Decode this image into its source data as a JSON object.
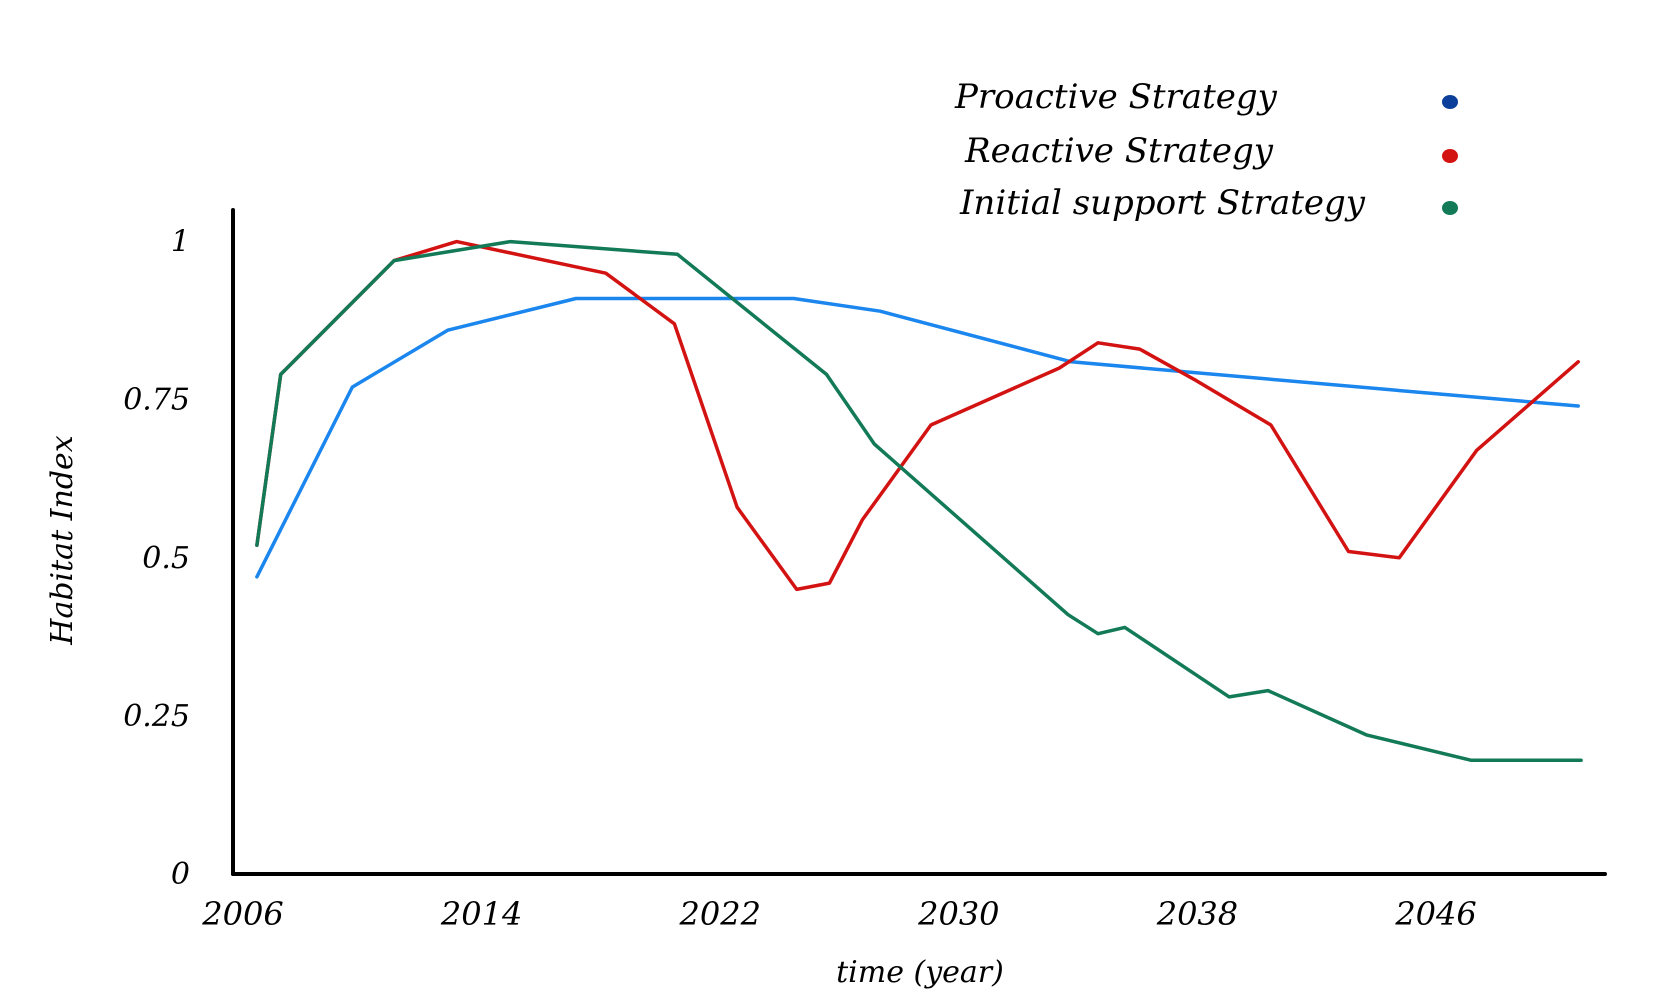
{
  "chart_data": {
    "type": "line",
    "xlabel": "time (year)",
    "ylabel": "Habitat Index",
    "xlim": [
      2006,
      2052
    ],
    "ylim": [
      0,
      1.05
    ],
    "x_ticks": [
      "2006",
      "2014",
      "2022",
      "2030",
      "2038",
      "2046"
    ],
    "x_tick_values": [
      2006,
      2014,
      2022,
      2030,
      2038,
      2046
    ],
    "y_ticks": [
      "0",
      "0.25",
      "0.5",
      "0.75",
      "1"
    ],
    "y_tick_values": [
      0,
      0.25,
      0.5,
      0.75,
      1
    ],
    "grid": false,
    "legend_position": "top-right",
    "series": [
      {
        "name": "Proactive Strategy",
        "color": "#1a86ee",
        "marker_color": "#0b3f9a",
        "points": [
          [
            2006.8,
            0.47
          ],
          [
            2010.0,
            0.77
          ],
          [
            2013.2,
            0.86
          ],
          [
            2017.5,
            0.91
          ],
          [
            2024.8,
            0.91
          ],
          [
            2027.7,
            0.89
          ],
          [
            2034.1,
            0.81
          ],
          [
            2046.2,
            0.76
          ],
          [
            2051.1,
            0.74
          ]
        ]
      },
      {
        "name": "Reactive Strategy",
        "color": "#d31212",
        "marker_color": "#d31212",
        "points": [
          [
            2006.8,
            0.52
          ],
          [
            2007.6,
            0.79
          ],
          [
            2011.4,
            0.97
          ],
          [
            2013.5,
            1.0
          ],
          [
            2018.5,
            0.95
          ],
          [
            2020.8,
            0.87
          ],
          [
            2022.9,
            0.58
          ],
          [
            2024.9,
            0.45
          ],
          [
            2026.0,
            0.46
          ],
          [
            2027.1,
            0.56
          ],
          [
            2029.4,
            0.71
          ],
          [
            2033.7,
            0.8
          ],
          [
            2035.0,
            0.84
          ],
          [
            2036.4,
            0.83
          ],
          [
            2038.3,
            0.78
          ],
          [
            2040.8,
            0.71
          ],
          [
            2043.4,
            0.51
          ],
          [
            2045.1,
            0.5
          ],
          [
            2047.7,
            0.67
          ],
          [
            2051.1,
            0.81
          ]
        ]
      },
      {
        "name": "Initial support Strategy",
        "color": "#137a57",
        "marker_color": "#137a57",
        "points": [
          [
            2006.8,
            0.52
          ],
          [
            2007.6,
            0.79
          ],
          [
            2011.4,
            0.97
          ],
          [
            2015.3,
            1.0
          ],
          [
            2020.9,
            0.98
          ],
          [
            2025.9,
            0.79
          ],
          [
            2027.5,
            0.68
          ],
          [
            2034.0,
            0.41
          ],
          [
            2035.0,
            0.38
          ],
          [
            2035.9,
            0.39
          ],
          [
            2039.4,
            0.28
          ],
          [
            2040.7,
            0.29
          ],
          [
            2044.0,
            0.22
          ],
          [
            2047.5,
            0.18
          ],
          [
            2051.2,
            0.18
          ]
        ]
      }
    ]
  }
}
